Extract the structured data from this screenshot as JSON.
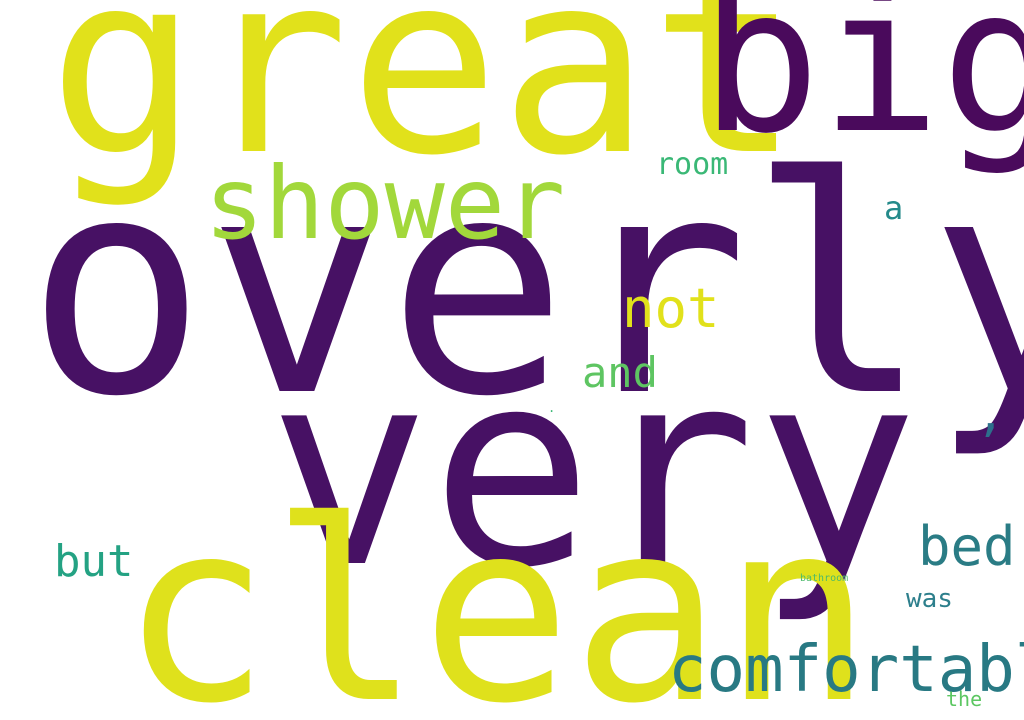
{
  "cloud": {
    "words": [
      {
        "key": "overly",
        "text": "overly",
        "color": "#471164"
      },
      {
        "key": "very",
        "text": "very",
        "color": "#471164"
      },
      {
        "key": "great",
        "text": "great",
        "color": "#e1e11b"
      },
      {
        "key": "clean",
        "text": "clean",
        "color": "#dfe11c"
      },
      {
        "key": "big",
        "text": "big",
        "color": "#4a0a5c"
      },
      {
        "key": "shower",
        "text": "shower",
        "color": "#a2d83b"
      },
      {
        "key": "comfortable",
        "text": "comfortable",
        "color": "#287983"
      },
      {
        "key": "bed",
        "text": "bed",
        "color": "#2a7c85"
      },
      {
        "key": "not",
        "text": "not",
        "color": "#e1e11b"
      },
      {
        "key": "and",
        "text": "and",
        "color": "#5ec562"
      },
      {
        "key": "but",
        "text": "but",
        "color": "#24a283"
      },
      {
        "key": "room",
        "text": "room",
        "color": "#3ab876"
      },
      {
        "key": "a",
        "text": "a",
        "color": "#248a8a"
      },
      {
        "key": "was",
        "text": "was",
        "color": "#2d7f8c"
      },
      {
        "key": "the",
        "text": "the",
        "color": "#5cc762"
      },
      {
        "key": "bathroom",
        "text": "bathroom",
        "color": "#4cba6a"
      },
      {
        "key": "comma",
        "text": ",",
        "color": "#2d6f8c"
      },
      {
        "key": "dot",
        "text": ".",
        "color": "#3ab876"
      }
    ]
  }
}
